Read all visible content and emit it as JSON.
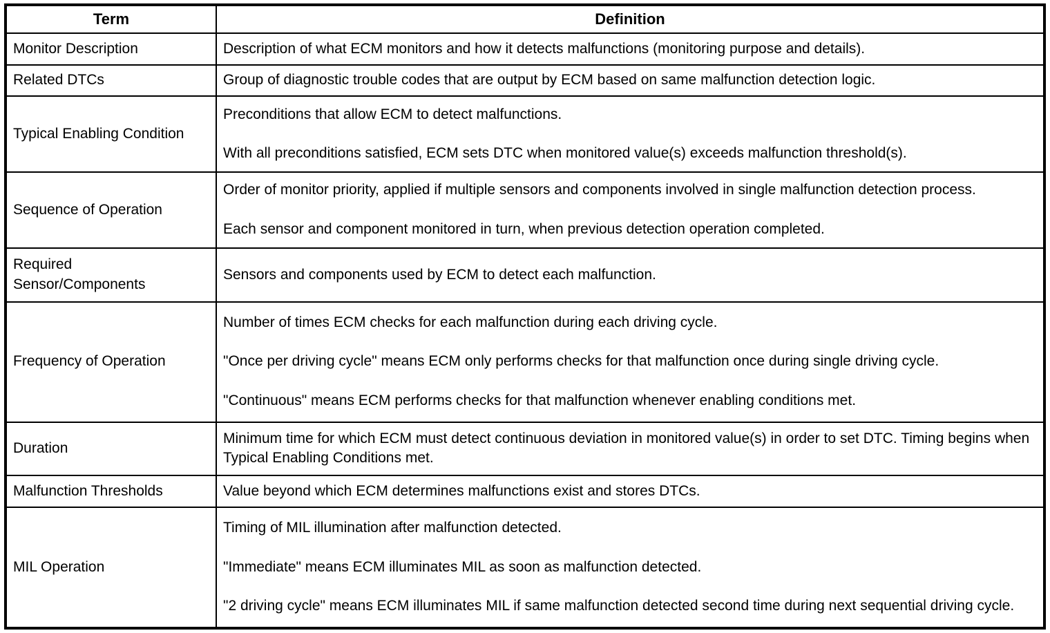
{
  "document": {
    "table": {
      "headers": {
        "term": "Term",
        "definition": "Definition"
      },
      "rows": [
        {
          "term": "Monitor Description",
          "definition": [
            "Description of what ECM monitors and how it detects malfunctions (monitoring purpose and details)."
          ]
        },
        {
          "term": "Related DTCs",
          "definition": [
            "Group of diagnostic trouble codes that are output by ECM based on same malfunction detection logic."
          ]
        },
        {
          "term": "Typical Enabling Condition",
          "definition": [
            "Preconditions that allow ECM to detect malfunctions.",
            "With all preconditions satisfied, ECM sets DTC when monitored value(s) exceeds malfunction threshold(s)."
          ]
        },
        {
          "term": "Sequence of Operation",
          "definition": [
            "Order of monitor priority, applied if multiple sensors and components involved in single malfunction detection process.",
            "Each sensor and component monitored in turn, when previous detection operation completed."
          ]
        },
        {
          "term": "Required\nSensor/Components",
          "definition": [
            "Sensors and components used by ECM to detect each malfunction."
          ]
        },
        {
          "term": "Frequency of Operation",
          "definition": [
            "Number of times ECM checks for each malfunction during each driving cycle.",
            "\"Once per driving cycle\" means ECM only performs checks for that malfunction once during single driving cycle.",
            "\"Continuous\" means ECM performs checks for that malfunction whenever enabling conditions met."
          ]
        },
        {
          "term": "Duration",
          "definition": [
            "Minimum time for which ECM must detect continuous deviation in monitored value(s) in order to set DTC. Timing begins when Typical Enabling Conditions met."
          ]
        },
        {
          "term": "Malfunction Thresholds",
          "definition": [
            "Value beyond which ECM determines malfunctions exist and stores DTCs."
          ]
        },
        {
          "term": "MIL Operation",
          "definition": [
            "Timing of MIL illumination after malfunction detected.",
            "\"Immediate\" means ECM illuminates MIL as soon as malfunction detected.",
            "\"2 driving cycle\" means ECM illuminates MIL if same malfunction detected second time during next sequential driving cycle."
          ]
        }
      ]
    },
    "colors": {
      "border": "#000000",
      "background": "#ffffff",
      "text": "#000000"
    }
  }
}
